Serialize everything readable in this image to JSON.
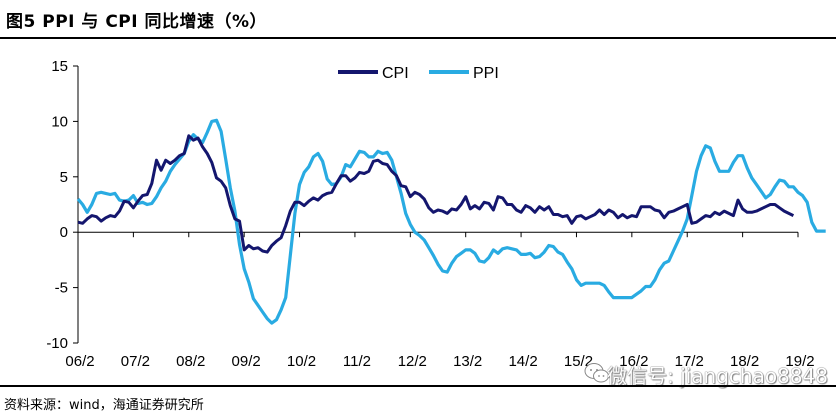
{
  "header": {
    "title": "图5  PPI 与 CPI 同比增速（%）"
  },
  "footer": {
    "source": "资料来源：wind，海通证券研究所"
  },
  "watermark": {
    "text": "微信号: jiangchao8848",
    "icon": "wechat-icon"
  },
  "colors": {
    "CPI": "#14166e",
    "PPI": "#29abe2",
    "axis": "#000000"
  },
  "chart_data": {
    "type": "line",
    "xlabel": "",
    "ylabel": "",
    "ylim": [
      -10,
      15
    ],
    "yticks": [
      -10,
      -5,
      0,
      5,
      10,
      15
    ],
    "xticks": [
      "06/2",
      "07/2",
      "08/2",
      "09/2",
      "10/2",
      "11/2",
      "12/2",
      "13/2",
      "14/2",
      "15/2",
      "16/2",
      "17/2",
      "18/2",
      "19/2"
    ],
    "x_start": "06/2",
    "x_step": "1 month",
    "grid": false,
    "legend": "top-center",
    "series": [
      {
        "name": "CPI",
        "values": [
          0.9,
          0.8,
          1.2,
          1.5,
          1.4,
          1.0,
          1.3,
          1.5,
          1.4,
          1.9,
          2.8,
          2.7,
          2.2,
          2.8,
          3.3,
          3.4,
          4.4,
          6.5,
          5.6,
          6.5,
          6.2,
          6.5,
          6.9,
          7.1,
          8.7,
          8.3,
          8.5,
          7.7,
          7.1,
          6.3,
          4.9,
          4.6,
          4.0,
          2.4,
          1.2,
          1.0,
          -1.6,
          -1.2,
          -1.5,
          -1.4,
          -1.7,
          -1.8,
          -1.2,
          -0.8,
          -0.5,
          0.6,
          1.9,
          2.7,
          2.7,
          2.4,
          2.8,
          3.1,
          2.9,
          3.3,
          3.5,
          3.6,
          4.4,
          5.1,
          5.1,
          4.6,
          4.9,
          5.4,
          5.3,
          5.5,
          6.4,
          6.5,
          6.2,
          6.1,
          5.5,
          5.1,
          4.2,
          4.1,
          3.2,
          3.6,
          3.4,
          3.0,
          2.2,
          1.8,
          2.0,
          1.9,
          1.7,
          2.1,
          2.0,
          2.5,
          3.2,
          2.1,
          2.4,
          2.1,
          2.7,
          2.6,
          2.0,
          3.2,
          3.1,
          2.5,
          2.5,
          2.0,
          1.8,
          2.4,
          2.2,
          1.8,
          2.3,
          2.0,
          2.3,
          1.6,
          1.6,
          1.4,
          1.5,
          0.8,
          1.4,
          1.5,
          1.2,
          1.4,
          1.6,
          2.0,
          1.6,
          2.0,
          1.8,
          1.3,
          1.6,
          1.3,
          1.5,
          1.4,
          2.3,
          2.3,
          2.3,
          2.0,
          1.9,
          1.3,
          1.8,
          1.9,
          2.1,
          2.3,
          2.5,
          0.8,
          0.9,
          1.2,
          1.5,
          1.4,
          1.8,
          1.6,
          1.9,
          1.7,
          1.5,
          2.9,
          2.1,
          1.8,
          1.8,
          1.9,
          2.1,
          2.3,
          2.5,
          2.5,
          2.2,
          1.9,
          1.7,
          1.5
        ]
      },
      {
        "name": "PPI",
        "values": [
          3.0,
          2.5,
          1.8,
          2.5,
          3.5,
          3.6,
          3.5,
          3.4,
          3.5,
          2.9,
          2.8,
          2.9,
          3.3,
          2.6,
          2.7,
          2.5,
          2.6,
          3.2,
          4.0,
          4.6,
          5.5,
          6.1,
          6.6,
          7.1,
          8.2,
          8.8,
          8.4,
          8.1,
          9.0,
          10.0,
          10.1,
          9.1,
          6.6,
          4.0,
          1.9,
          -1.1,
          -3.3,
          -4.5,
          -6.0,
          -6.6,
          -7.2,
          -7.8,
          -8.2,
          -7.9,
          -7.0,
          -5.9,
          -2.1,
          1.7,
          4.3,
          5.4,
          5.9,
          6.8,
          7.1,
          6.4,
          4.8,
          4.3,
          4.4,
          5.0,
          6.1,
          5.9,
          6.6,
          7.3,
          7.2,
          6.8,
          6.8,
          7.3,
          7.1,
          7.2,
          6.5,
          5.0,
          3.5,
          1.7,
          0.7,
          0.0,
          -0.3,
          -0.7,
          -1.4,
          -2.1,
          -2.9,
          -3.5,
          -3.6,
          -2.8,
          -2.2,
          -1.9,
          -1.6,
          -1.6,
          -1.9,
          -2.6,
          -2.7,
          -2.3,
          -1.6,
          -1.9,
          -1.5,
          -1.4,
          -1.5,
          -1.6,
          -2.0,
          -2.0,
          -1.9,
          -2.3,
          -2.2,
          -1.8,
          -1.2,
          -1.3,
          -1.8,
          -2.0,
          -2.7,
          -3.3,
          -4.3,
          -4.8,
          -4.6,
          -4.6,
          -4.6,
          -4.6,
          -4.8,
          -5.4,
          -5.9,
          -5.9,
          -5.9,
          -5.9,
          -5.9,
          -5.6,
          -5.3,
          -4.9,
          -4.9,
          -4.3,
          -3.4,
          -2.8,
          -2.6,
          -1.7,
          -0.8,
          0.1,
          1.2,
          3.3,
          5.5,
          6.9,
          7.8,
          7.6,
          6.4,
          5.5,
          5.5,
          5.5,
          6.3,
          6.9,
          6.9,
          5.8,
          4.9,
          4.3,
          3.7,
          3.1,
          3.4,
          4.1,
          4.7,
          4.6,
          4.1,
          4.1,
          3.6,
          3.3,
          2.7,
          0.9,
          0.1,
          0.1,
          0.1
        ]
      }
    ]
  }
}
